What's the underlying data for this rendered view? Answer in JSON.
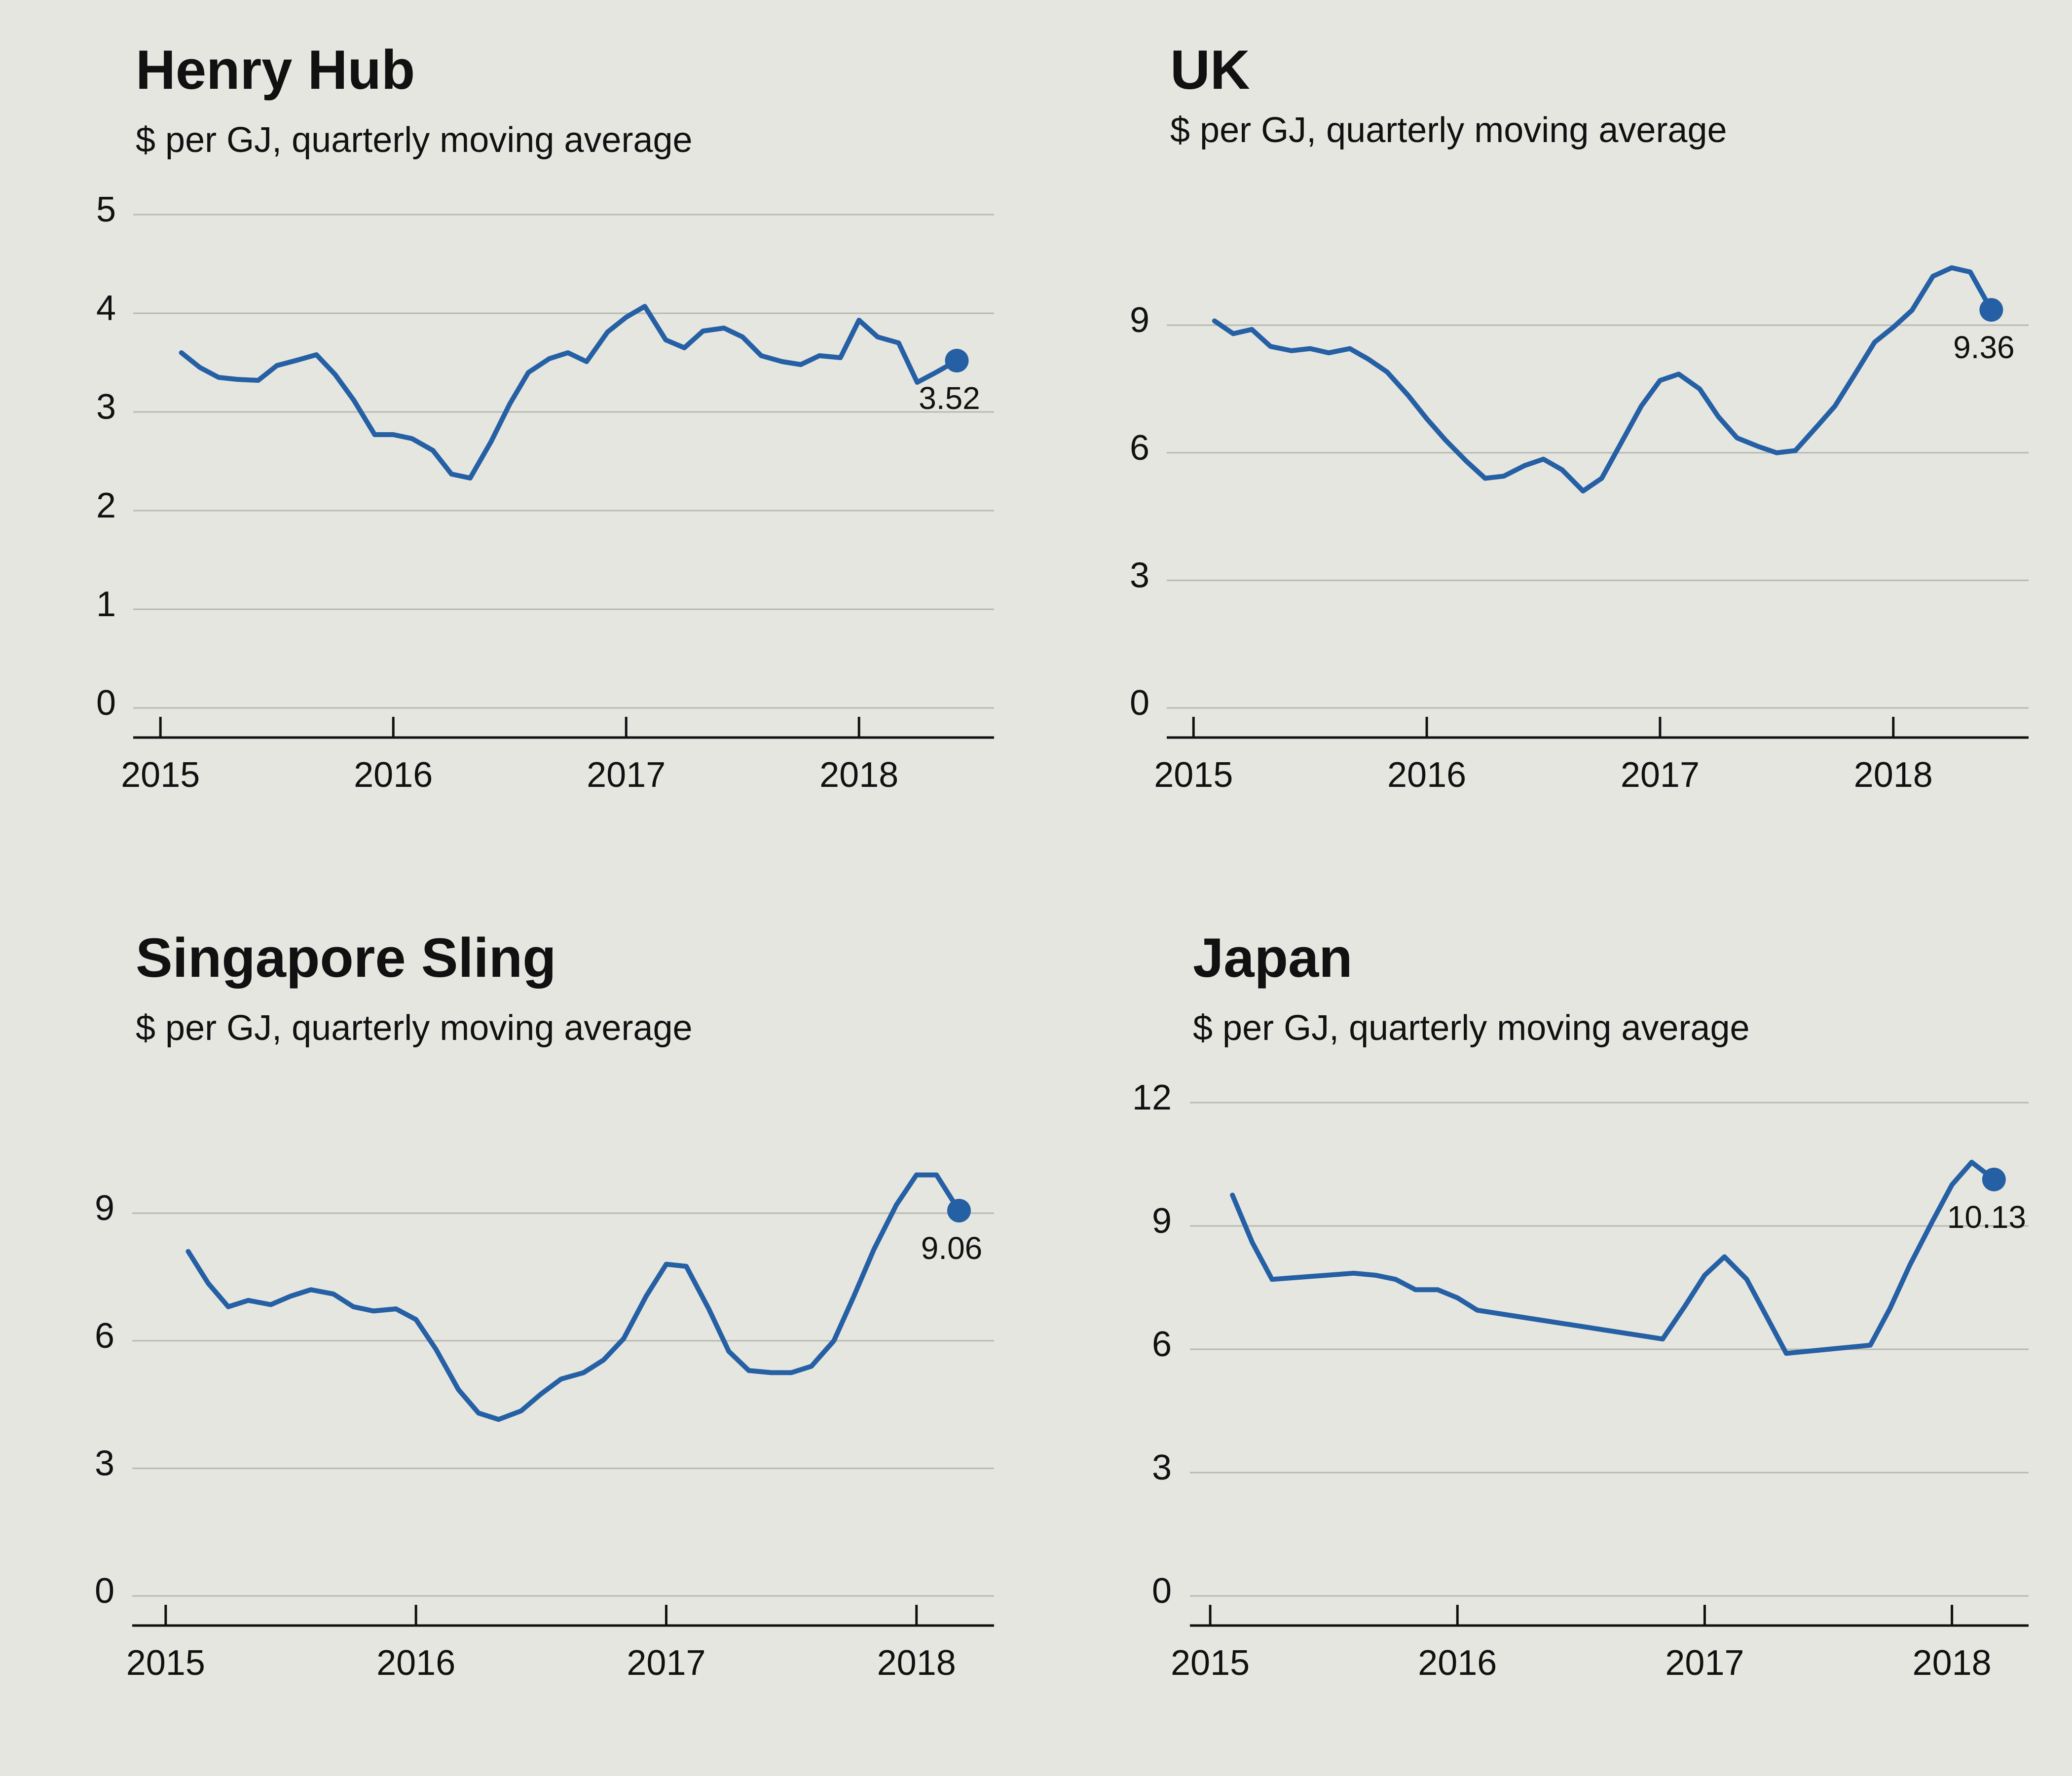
{
  "colors": {
    "line": "#2660a4",
    "grid": "#b9b9b3",
    "axis": "#111111",
    "background": "#e6e6e1"
  },
  "chart_data": [
    {
      "type": "line",
      "title": "Henry Hub",
      "subtitle": "$ per GJ, quarterly moving average",
      "yticks": [
        0,
        1,
        2,
        3,
        4,
        5
      ],
      "ylim": [
        0,
        5
      ],
      "xticks": [
        2015,
        2016,
        2017,
        2018
      ],
      "xlim": [
        2014.9,
        2018.58
      ],
      "series": [
        {
          "x": [
            2015.09,
            2015.17,
            2015.25,
            2015.33,
            2015.42,
            2015.5,
            2015.58,
            2015.67,
            2015.75,
            2015.83,
            2015.92,
            2016.0,
            2016.08,
            2016.17,
            2016.25,
            2016.33,
            2016.42,
            2016.5,
            2016.58,
            2016.67,
            2016.75,
            2016.83,
            2016.92,
            2017.0,
            2017.08,
            2017.17,
            2017.25,
            2017.33,
            2017.42,
            2017.5,
            2017.58,
            2017.67,
            2017.75,
            2017.83,
            2017.92,
            2018.0,
            2018.08,
            2018.17,
            2018.25,
            2018.33,
            2018.42
          ],
          "y": [
            3.6,
            3.45,
            3.35,
            3.33,
            3.32,
            3.47,
            3.52,
            3.58,
            3.38,
            3.12,
            2.77,
            2.77,
            2.73,
            2.61,
            2.37,
            2.33,
            2.7,
            3.08,
            3.4,
            3.54,
            3.6,
            3.51,
            3.81,
            3.96,
            4.07,
            3.73,
            3.65,
            3.82,
            3.85,
            3.76,
            3.57,
            3.51,
            3.48,
            3.57,
            3.55,
            3.93,
            3.76,
            3.7,
            3.3,
            3.4,
            3.52
          ]
        }
      ],
      "end_label": "3.52",
      "end_label_dy": 1
    },
    {
      "type": "line",
      "title": "UK",
      "subtitle": "$ per GJ, quarterly moving average",
      "yticks": [
        0,
        3,
        6,
        9
      ],
      "ylim": [
        0,
        11.6
      ],
      "xticks": [
        2015,
        2016,
        2017,
        2018
      ],
      "xlim": [
        2014.9,
        2018.58
      ],
      "series": [
        {
          "x": [
            2015.09,
            2015.17,
            2015.25,
            2015.33,
            2015.42,
            2015.5,
            2015.58,
            2015.67,
            2015.75,
            2015.83,
            2015.92,
            2016.0,
            2016.08,
            2016.17,
            2016.25,
            2016.33,
            2016.42,
            2016.5,
            2016.58,
            2016.67,
            2016.75,
            2016.83,
            2016.92,
            2017.0,
            2017.08,
            2017.17,
            2017.25,
            2017.33,
            2017.42,
            2017.5,
            2017.58,
            2017.67,
            2017.75,
            2017.83,
            2017.92,
            2018.0,
            2018.08,
            2018.17,
            2018.25,
            2018.33,
            2018.42
          ],
          "y": [
            9.1,
            8.8,
            8.9,
            8.5,
            8.4,
            8.45,
            8.35,
            8.45,
            8.2,
            7.9,
            7.35,
            6.8,
            6.3,
            5.8,
            5.4,
            5.45,
            5.7,
            5.85,
            5.6,
            5.1,
            5.4,
            6.2,
            7.1,
            7.7,
            7.85,
            7.5,
            6.85,
            6.35,
            6.15,
            6.0,
            6.05,
            6.6,
            7.1,
            7.8,
            8.6,
            8.95,
            9.35,
            10.15,
            10.35,
            10.25,
            9.36
          ]
        }
      ],
      "end_label": "9.36",
      "end_label_dy": 1
    },
    {
      "type": "line",
      "title": "Singapore Sling",
      "subtitle": "$ per GJ, quarterly moving average",
      "yticks": [
        0,
        3,
        6,
        9
      ],
      "ylim": [
        0,
        11.6
      ],
      "xticks": [
        2015,
        2016,
        2017,
        2018
      ],
      "xlim": [
        2014.88,
        2018.31
      ],
      "series": [
        {
          "x": [
            2015.09,
            2015.17,
            2015.25,
            2015.33,
            2015.42,
            2015.5,
            2015.58,
            2015.67,
            2015.75,
            2015.83,
            2015.92,
            2016.0,
            2016.08,
            2016.17,
            2016.25,
            2016.33,
            2016.42,
            2016.5,
            2016.58,
            2016.67,
            2016.75,
            2016.83,
            2016.92,
            2017.0,
            2017.08,
            2017.17,
            2017.25,
            2017.33,
            2017.42,
            2017.5,
            2017.58,
            2017.67,
            2017.75,
            2017.83,
            2017.92,
            2018.0,
            2018.08,
            2018.17
          ],
          "y": [
            8.1,
            7.35,
            6.8,
            6.95,
            6.85,
            7.05,
            7.2,
            7.1,
            6.8,
            6.7,
            6.75,
            6.5,
            5.8,
            4.85,
            4.3,
            4.15,
            4.35,
            4.75,
            5.1,
            5.25,
            5.55,
            6.05,
            7.05,
            7.8,
            7.75,
            6.75,
            5.75,
            5.3,
            5.25,
            5.25,
            5.4,
            6.0,
            7.05,
            8.15,
            9.2,
            9.9,
            9.9,
            9.06
          ]
        }
      ],
      "end_label": "9.06",
      "end_label_dy": 1
    },
    {
      "type": "line",
      "title": "Japan",
      "subtitle": "$ per GJ, quarterly moving average",
      "yticks": [
        0,
        3,
        6,
        9,
        12
      ],
      "ylim": [
        0,
        12
      ],
      "xticks": [
        2015,
        2016,
        2017,
        2018
      ],
      "xlim": [
        2014.93,
        2018.31
      ],
      "series": [
        {
          "x": [
            2015.09,
            2015.17,
            2015.25,
            2015.58,
            2015.67,
            2015.75,
            2015.83,
            2015.92,
            2016.0,
            2016.08,
            2016.83,
            2016.92,
            2017.0,
            2017.08,
            2017.17,
            2017.33,
            2017.67,
            2017.75,
            2017.83,
            2017.92,
            2018.0,
            2018.08,
            2018.17
          ],
          "y": [
            9.75,
            8.6,
            7.7,
            7.85,
            7.8,
            7.7,
            7.45,
            7.45,
            7.25,
            6.95,
            6.25,
            7.05,
            7.8,
            8.25,
            7.7,
            5.9,
            6.1,
            7.0,
            8.05,
            9.1,
            10.0,
            10.55,
            10.13
          ]
        }
      ],
      "end_label": "10.13",
      "end_label_dy": 1
    }
  ]
}
